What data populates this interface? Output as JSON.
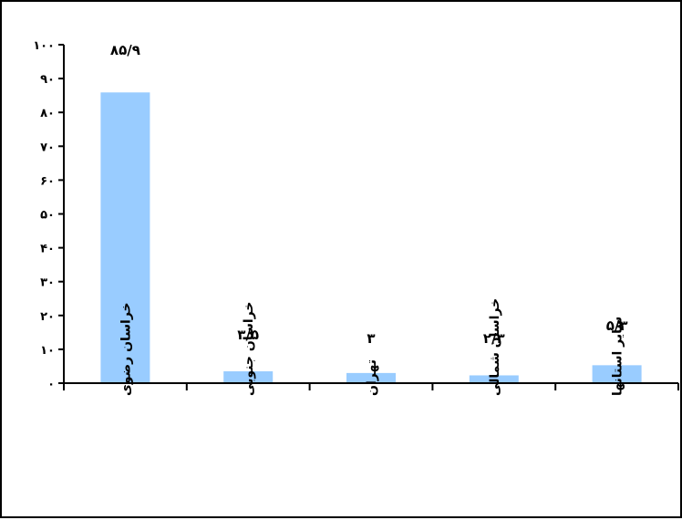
{
  "chart_data": {
    "type": "bar",
    "title": "",
    "xlabel": "",
    "ylabel": "",
    "categories": [
      "خراسان رضوی",
      "خراسان جنوبی",
      "تهران",
      "خراسان شمالی",
      "سایر استانها"
    ],
    "values": [
      85.9,
      3.5,
      3,
      2.3,
      5.3
    ],
    "data_labels": [
      "۸۵/۹",
      "۳/۵",
      "۳",
      "۲/۳",
      "۵/۳"
    ],
    "ylim": [
      0,
      100
    ],
    "yticks": [
      0,
      10,
      20,
      30,
      40,
      50,
      60,
      70,
      80,
      90,
      100
    ],
    "ytick_labels": [
      "۰",
      "۱۰",
      "۲۰",
      "۳۰",
      "۴۰",
      "۵۰",
      "۶۰",
      "۷۰",
      "۸۰",
      "۹۰",
      "۱۰۰"
    ],
    "grid": false,
    "legend": "none",
    "bar_color": "#99ccff",
    "axis_color": "#000000"
  }
}
